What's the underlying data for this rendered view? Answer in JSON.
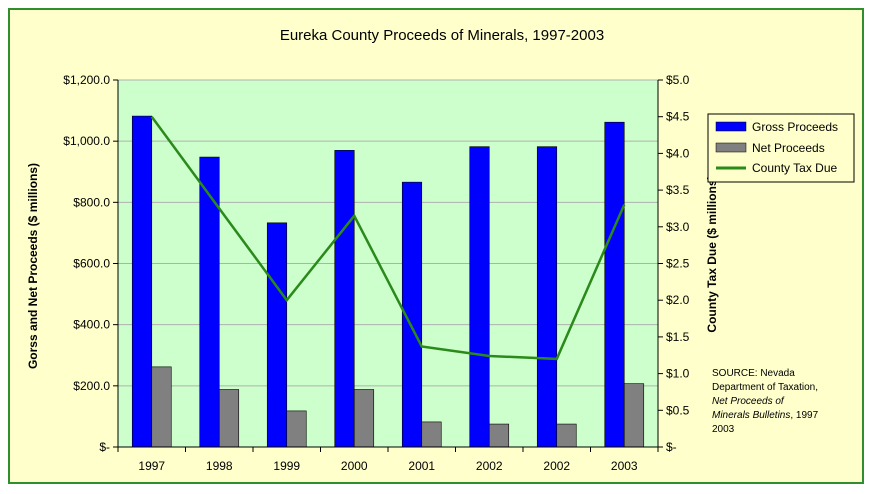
{
  "chart_data": {
    "type": "bar",
    "title": "Eureka County Proceeds of Minerals, 1997-2003",
    "ylabel_left": "Gorss and Net Proceeds ($ millions)",
    "ylabel_right": "County Tax Due ($ millions)",
    "categories": [
      "1997",
      "1998",
      "1999",
      "2000",
      "2001",
      "2002",
      "2002",
      "2003"
    ],
    "series": [
      {
        "name": "Gross Proceeds",
        "type": "bar",
        "axis": "left",
        "color": "#0000ff",
        "values": [
          1082,
          948,
          733,
          970,
          866,
          982,
          982,
          1062
        ]
      },
      {
        "name": "Net Proceeds",
        "type": "bar",
        "axis": "left",
        "color": "#808080",
        "values": [
          262,
          188,
          118,
          188,
          82,
          75,
          75,
          207
        ]
      },
      {
        "name": "County Tax Due",
        "type": "line",
        "axis": "right",
        "color": "#2a8a1a",
        "values": [
          4.5,
          3.25,
          2.0,
          3.15,
          1.37,
          1.24,
          1.2,
          3.3
        ]
      }
    ],
    "ylim_left": [
      0,
      1200
    ],
    "ylim_right": [
      0,
      5.0
    ],
    "yticks_left": [
      "$-",
      "$200.0",
      "$400.0",
      "$600.0",
      "$800.0",
      "$1,000.0",
      "$1,200.0"
    ],
    "yticks_right": [
      "$-",
      "$0.5",
      "$1.0",
      "$1.5",
      "$2.0",
      "$2.5",
      "$3.0",
      "$3.5",
      "$4.0",
      "$4.5",
      "$5.0"
    ],
    "legend_position": "top-right",
    "plot_background": "#ccffcc",
    "frame_background": "#ffffcc",
    "grid": true,
    "source_note": {
      "line1": "SOURCE: Nevada",
      "line2": "Department of Taxation,",
      "line3": "Net Proceeds of",
      "line4_italic": "Minerals Bulletins",
      "line4_rest": ", 1997",
      "line5": "2003"
    }
  }
}
